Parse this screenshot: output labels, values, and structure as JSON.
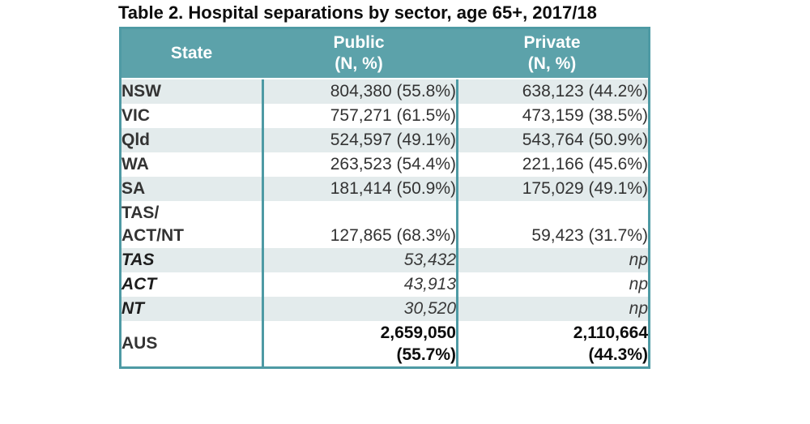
{
  "title": "Table 2. Hospital separations by sector, age 65+, 2017/18",
  "colors": {
    "header_background": "#5CA2AA",
    "table_border": "#4E9AA4",
    "row_stripe": "#E3EBEC",
    "header_text": "#FFFFFF",
    "body_text": "#333333"
  },
  "table": {
    "columns": [
      {
        "label": "State",
        "sub": ""
      },
      {
        "label": "Public",
        "sub": "(N, %)"
      },
      {
        "label": "Private",
        "sub": "(N, %)"
      }
    ],
    "rows": [
      {
        "state": "NSW",
        "public": "804,380 (55.8%)",
        "private": "638,123 (44.2%)"
      },
      {
        "state": "VIC",
        "public": "757,271 (61.5%)",
        "private": "473,159 (38.5%)"
      },
      {
        "state": "Qld",
        "public": "524,597 (49.1%)",
        "private": "543,764 (50.9%)"
      },
      {
        "state": "WA",
        "public": "263,523 (54.4%)",
        "private": "221,166 (45.6%)"
      },
      {
        "state": "SA",
        "public": "181,414 (50.9%)",
        "private": "175,029 (49.1%)"
      },
      {
        "state": "TAS/\nACT/NT",
        "public": "127,865 (68.3%)",
        "private": "59,423 (31.7%)"
      },
      {
        "state": "TAS",
        "public": "53,432",
        "private": "np"
      },
      {
        "state": "ACT",
        "public": "43,913",
        "private": "np"
      },
      {
        "state": "NT",
        "public": "30,520",
        "private": "np"
      },
      {
        "state": "AUS",
        "public": "2,659,050\n(55.7%)",
        "private": "2,110,664\n(44.3%)"
      }
    ]
  },
  "chart_data": {
    "type": "table",
    "title": "Table 2. Hospital separations by sector, age 65+, 2017/18",
    "columns": [
      "State",
      "Public (N, %)",
      "Private (N, %)"
    ],
    "rows": [
      [
        "NSW",
        "804,380 (55.8%)",
        "638,123 (44.2%)"
      ],
      [
        "VIC",
        "757,271 (61.5%)",
        "473,159 (38.5%)"
      ],
      [
        "Qld",
        "524,597 (49.1%)",
        "543,764 (50.9%)"
      ],
      [
        "WA",
        "263,523 (54.4%)",
        "221,166 (45.6%)"
      ],
      [
        "SA",
        "181,414 (50.9%)",
        "175,029 (49.1%)"
      ],
      [
        "TAS/ACT/NT",
        "127,865 (68.3%)",
        "59,423 (31.7%)"
      ],
      [
        "TAS",
        "53,432",
        "np"
      ],
      [
        "ACT",
        "43,913",
        "np"
      ],
      [
        "NT",
        "30,520",
        "np"
      ],
      [
        "AUS",
        "2,659,050 (55.7%)",
        "2,110,664 (44.3%)"
      ]
    ]
  }
}
